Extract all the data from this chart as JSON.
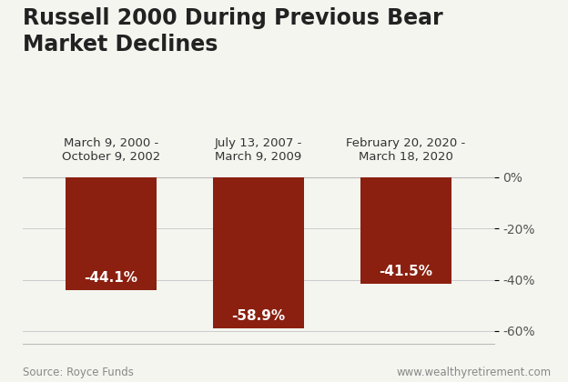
{
  "title": "Russell 2000 During Previous Bear\nMarket Declines",
  "categories": [
    "March 9, 2000 -\nOctober 9, 2002",
    "July 13, 2007 -\nMarch 9, 2009",
    "February 20, 2020 -\nMarch 18, 2020"
  ],
  "values": [
    -44.1,
    -58.9,
    -41.5
  ],
  "bar_color": "#8B2010",
  "bar_labels": [
    "-44.1%",
    "-58.9%",
    "-41.5%"
  ],
  "ylim": [
    -65,
    5
  ],
  "yticks": [
    0,
    -20,
    -40,
    -60
  ],
  "ytick_labels": [
    "0%",
    "-20%",
    "-40%",
    "-60%"
  ],
  "source_left": "Source: Royce Funds",
  "source_right": "www.wealthyretirement.com",
  "title_fontsize": 17,
  "label_fontsize": 10,
  "category_fontsize": 9.5,
  "bar_label_fontsize": 11,
  "footer_fontsize": 8.5,
  "background_color": "#f5f5f0",
  "bar_width": 0.62
}
